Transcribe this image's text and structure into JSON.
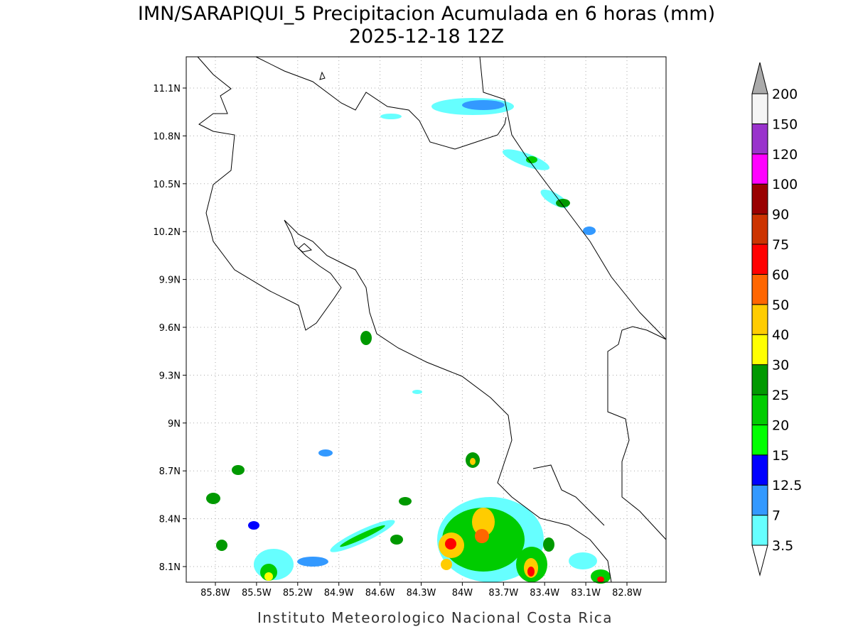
{
  "header": {
    "title": "IMN/SARAPIQUI_5 Precipitacion Acumulada en 6 horas (mm)",
    "subtitle": "2025-12-18 12Z"
  },
  "map": {
    "lon_labels": [
      "85.8W",
      "85.5W",
      "85.2W",
      "84.9W",
      "84.6W",
      "84.3W",
      "84W",
      "83.7W",
      "83.4W",
      "83.1W",
      "82.8W"
    ],
    "lat_labels": [
      "8.1N",
      "8.4N",
      "8.7N",
      "9N",
      "9.3N",
      "9.6N",
      "9.9N",
      "10.2N",
      "10.5N",
      "10.8N",
      "11.1N"
    ]
  },
  "colorbar": {
    "levels": [
      3.5,
      7,
      12.5,
      15,
      20,
      25,
      30,
      40,
      50,
      60,
      75,
      90,
      100,
      120,
      150,
      200
    ],
    "colors": [
      "#66ffff",
      "#3399ff",
      "#0000ff",
      "#00ff00",
      "#00cc00",
      "#009900",
      "#ffff00",
      "#ffcc00",
      "#ff6600",
      "#ff0000",
      "#cc3300",
      "#990000",
      "#ff00ff",
      "#9933cc",
      "#f5f5f5"
    ]
  },
  "footer": {
    "credit": "Instituto Meteorologico Nacional Costa Rica"
  }
}
